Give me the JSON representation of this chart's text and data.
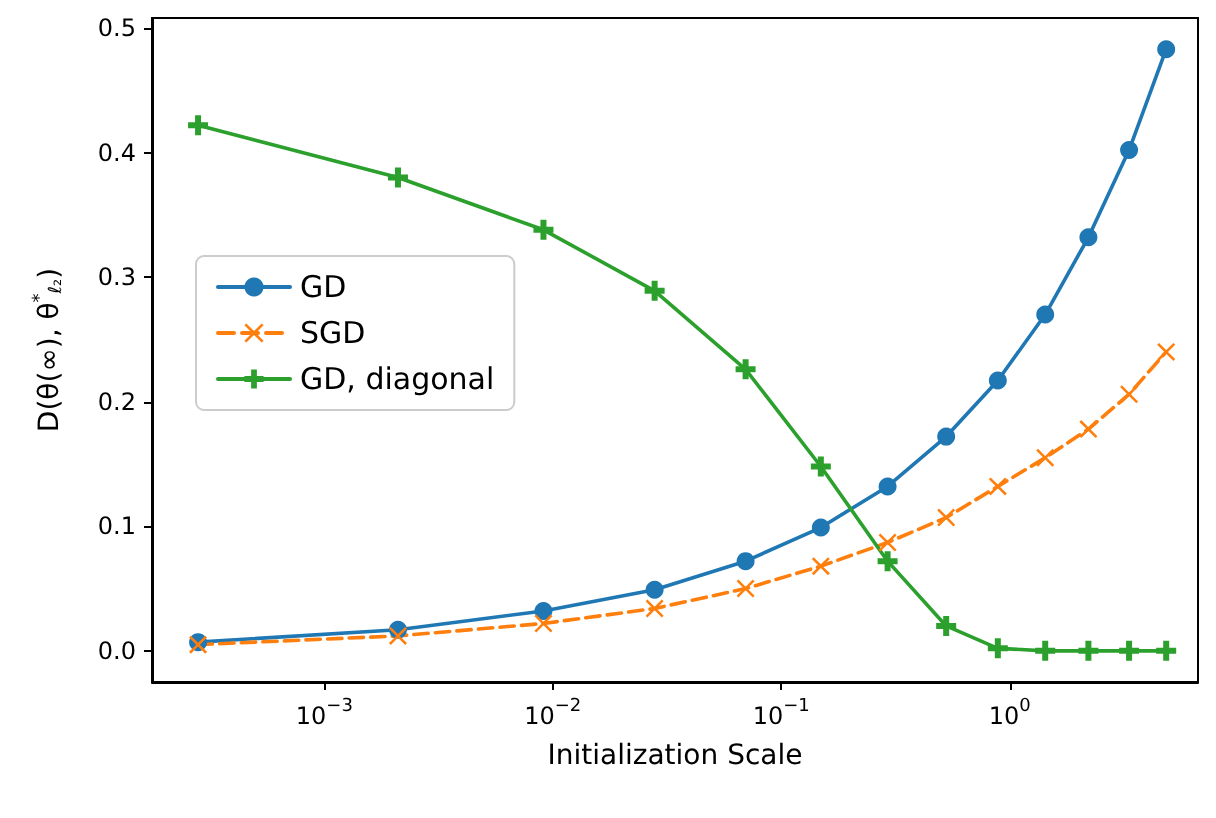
{
  "chart_data": {
    "type": "line",
    "xlabel": "Initialization Scale",
    "ylabel": "D(θ(∞), θ$^{*}$$_{ℓ₂}$)",
    "x": [
      0.00028,
      0.0021,
      0.0091,
      0.0279,
      0.0698,
      0.149,
      0.292,
      0.527,
      0.887,
      1.43,
      2.21,
      3.33,
      4.84
    ],
    "series": [
      {
        "name": "GD",
        "color": "#1f77b4",
        "marker": "circle",
        "line_style": "solid",
        "values": [
          0.007,
          0.017,
          0.032,
          0.049,
          0.072,
          0.099,
          0.132,
          0.172,
          0.217,
          0.27,
          0.332,
          0.402,
          0.483
        ]
      },
      {
        "name": "SGD",
        "color": "#ff7f0e",
        "marker": "cross",
        "line_style": "dashed",
        "values": [
          0.005,
          0.012,
          0.022,
          0.034,
          0.05,
          0.068,
          0.087,
          0.107,
          0.132,
          0.155,
          0.178,
          0.206,
          0.24
        ]
      },
      {
        "name": "GD, diagonal",
        "color": "#2ca02c",
        "marker": "plus",
        "line_style": "solid",
        "values": [
          0.422,
          0.38,
          0.338,
          0.289,
          0.226,
          0.148,
          0.072,
          0.02,
          0.002,
          0.0,
          0.0,
          0.0,
          0.0
        ]
      }
    ],
    "log": "x",
    "xlim": [
      0.000176,
      6.67
    ],
    "xticks": [
      {
        "value": 0.001,
        "label": "10$^{−3}$"
      },
      {
        "value": 0.01,
        "label": "10$^{−2}$"
      },
      {
        "value": 0.1,
        "label": "10$^{−1}$"
      },
      {
        "value": 1,
        "label": "10$^{0}$"
      }
    ],
    "ylim": [
      -0.025,
      0.508
    ],
    "yticks": [
      {
        "value": 0,
        "label": "0.0"
      },
      0.1,
      0.2,
      0.3,
      0.4,
      0.5
    ],
    "grid": false,
    "legend": "center left"
  }
}
